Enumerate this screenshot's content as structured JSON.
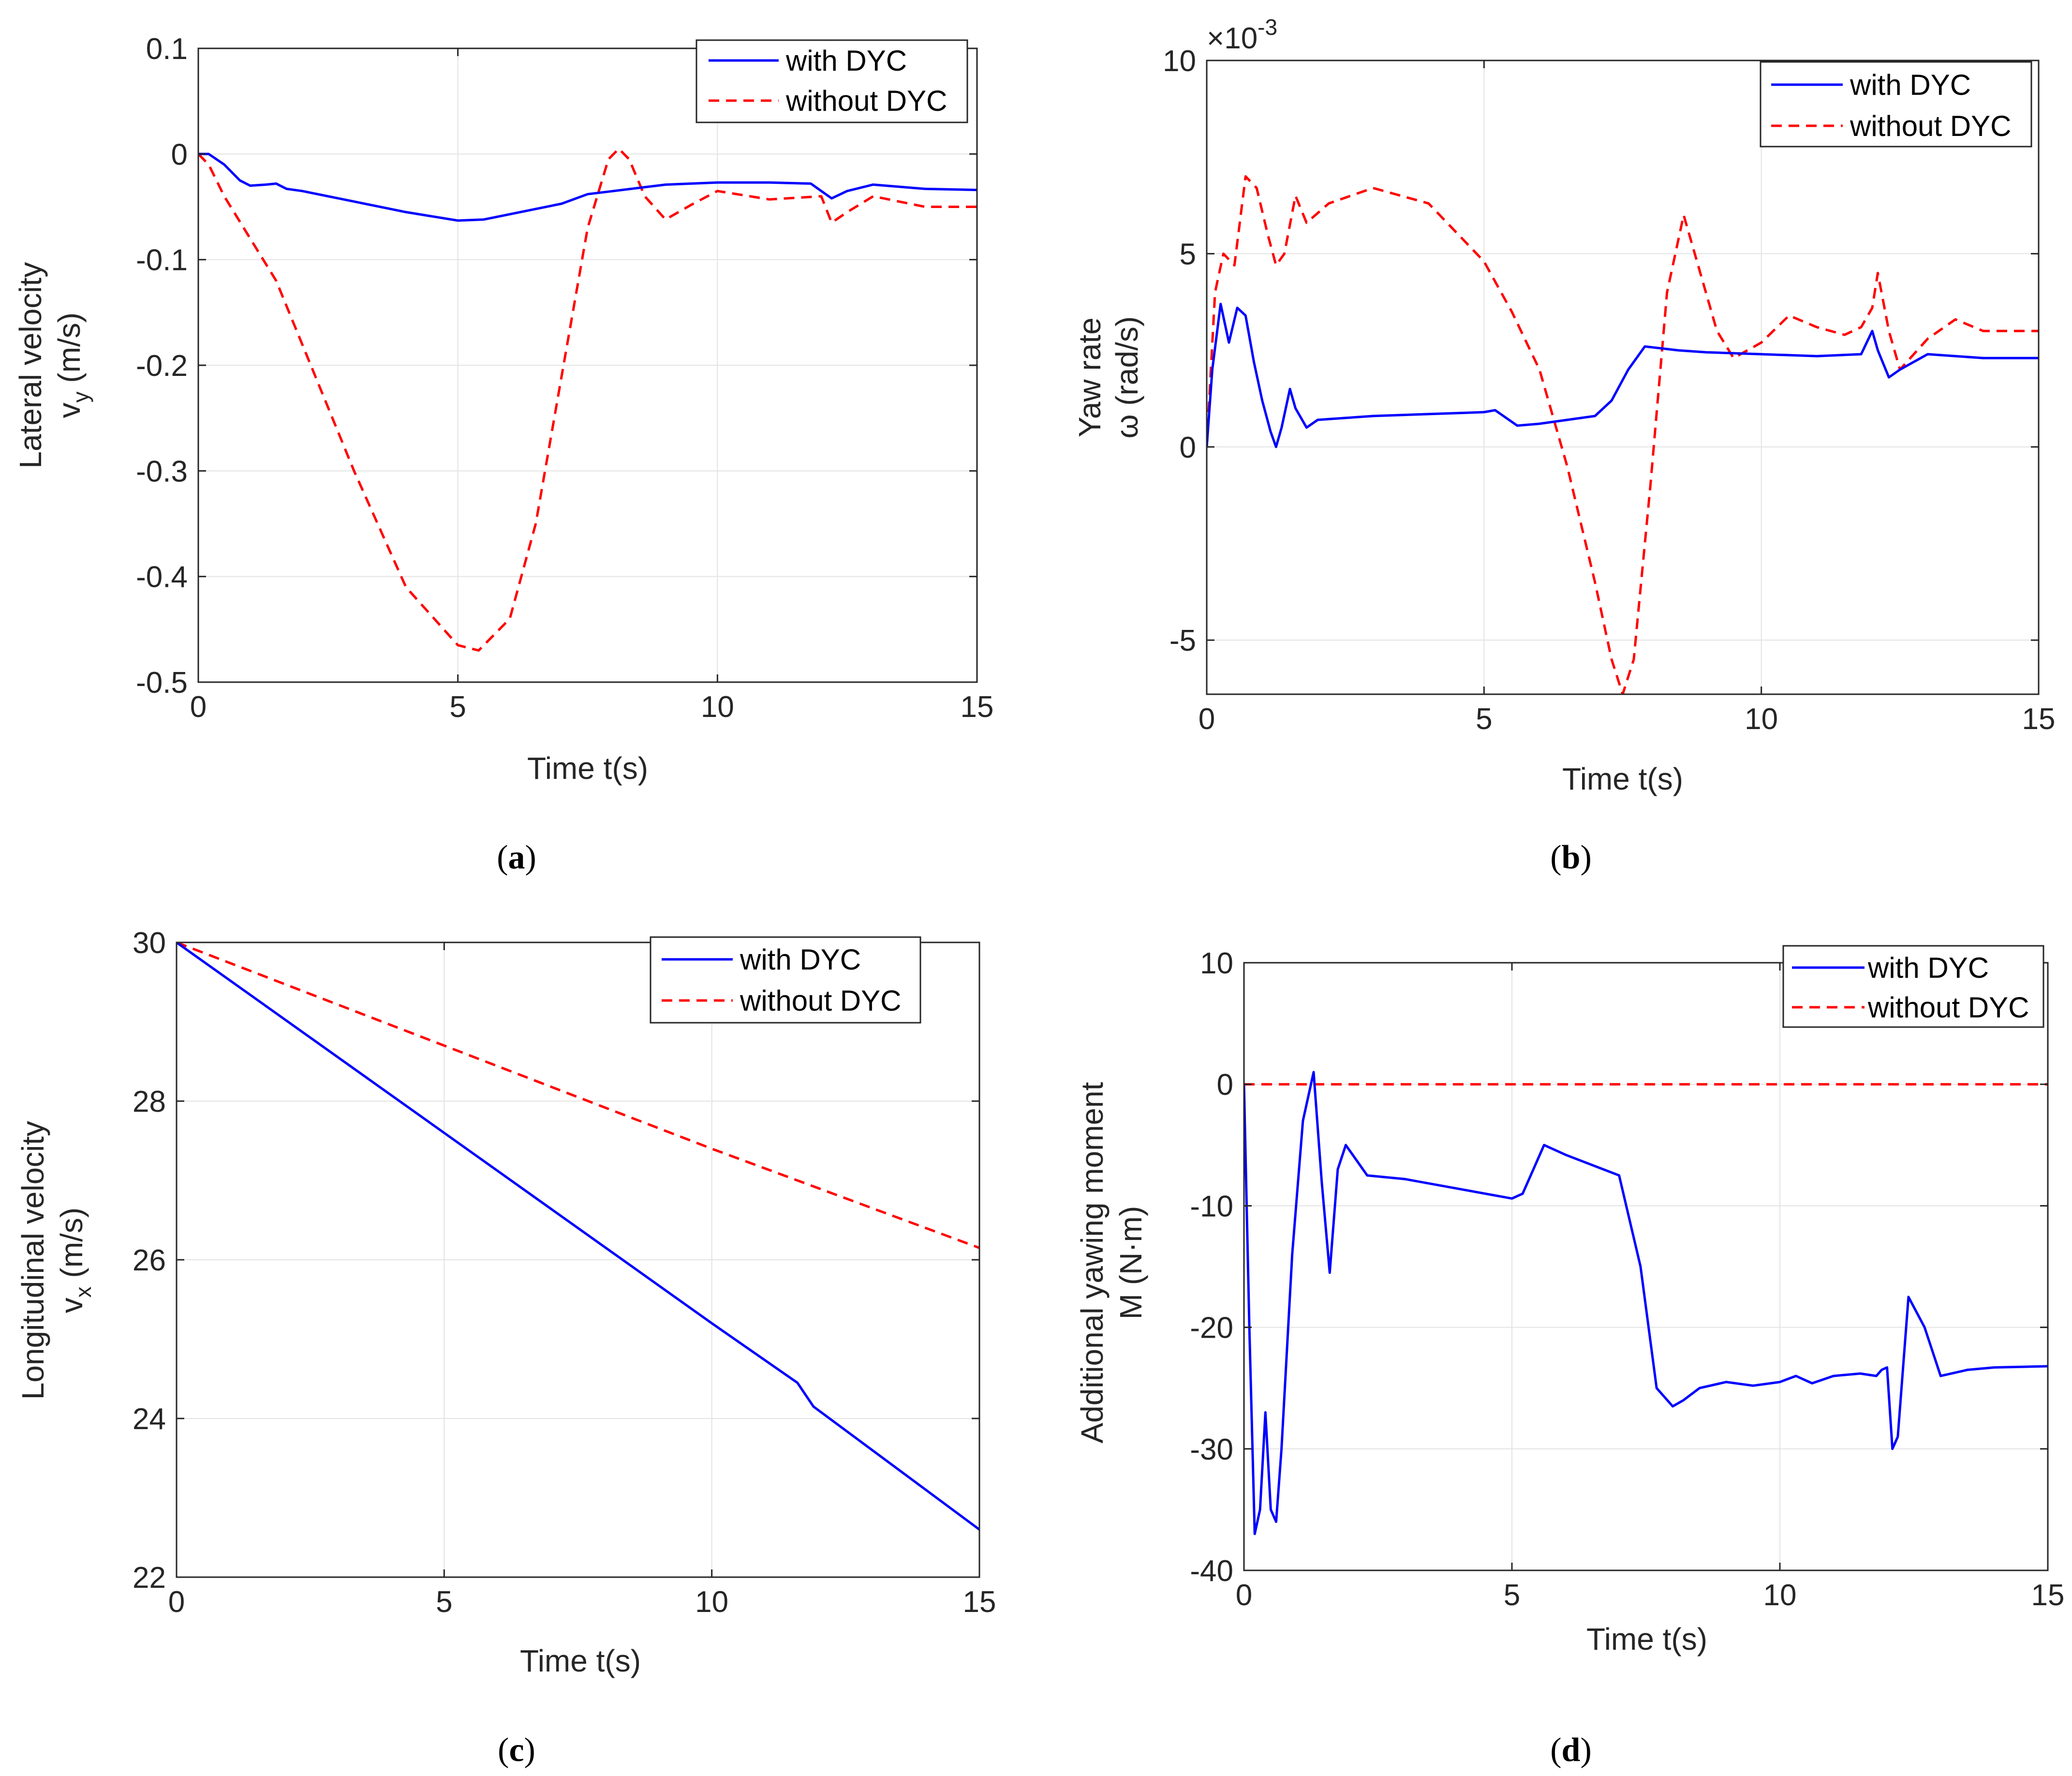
{
  "colors": {
    "with": "#0000ff",
    "without": "#ff0000",
    "grid": "#e3e3e3",
    "axis": "#262626"
  },
  "chart_data": [
    {
      "type": "line",
      "caption": "a",
      "title": "",
      "xlabel": "Time t(s)",
      "ylabel_line1": "Lateral velocity",
      "ylabel_line2": "v",
      "ylabel_sub": "y",
      "ylabel_unit": " (m/s)",
      "xlim": [
        0,
        15
      ],
      "ylim": [
        -0.5,
        0.1
      ],
      "xticks": [
        0,
        5,
        10,
        15
      ],
      "xtick_labels": [
        "0",
        "5",
        "10",
        "15"
      ],
      "yticks": [
        -0.5,
        -0.4,
        -0.3,
        -0.2,
        -0.1,
        0,
        0.1
      ],
      "ytick_labels": [
        "-0.5",
        "-0.4",
        "-0.3",
        "-0.2",
        "-0.1",
        "0",
        "0.1"
      ],
      "grid": true,
      "legend": "top-right",
      "series": [
        {
          "name": "with DYC",
          "style": "solid",
          "x": [
            0,
            0.2,
            0.5,
            0.8,
            1.0,
            1.3,
            1.5,
            1.7,
            2.0,
            3.0,
            4.0,
            5.0,
            5.5,
            6.0,
            7.0,
            7.5,
            8.0,
            9.0,
            10.0,
            11.0,
            11.8,
            12.0,
            12.2,
            12.5,
            13.0,
            14.0,
            15.0
          ],
          "y": [
            0,
            0,
            -0.01,
            -0.025,
            -0.03,
            -0.029,
            -0.028,
            -0.033,
            -0.035,
            -0.045,
            -0.055,
            -0.063,
            -0.062,
            -0.057,
            -0.047,
            -0.038,
            -0.035,
            -0.029,
            -0.027,
            -0.027,
            -0.028,
            -0.035,
            -0.042,
            -0.035,
            -0.029,
            -0.033,
            -0.034
          ]
        },
        {
          "name": "without DYC",
          "style": "dashed",
          "x": [
            0,
            0.2,
            0.5,
            1.0,
            1.5,
            2.0,
            3.0,
            4.0,
            5.0,
            5.4,
            6.0,
            6.5,
            7.0,
            7.5,
            7.9,
            8.1,
            8.3,
            8.6,
            9.0,
            9.5,
            10.0,
            11.0,
            12.0,
            12.2,
            12.5,
            13.0,
            14.0,
            15.0
          ],
          "y": [
            0,
            -0.01,
            -0.04,
            -0.08,
            -0.12,
            -0.18,
            -0.3,
            -0.41,
            -0.465,
            -0.47,
            -0.44,
            -0.35,
            -0.21,
            -0.07,
            -0.005,
            0.005,
            -0.005,
            -0.04,
            -0.062,
            -0.048,
            -0.035,
            -0.043,
            -0.04,
            -0.065,
            -0.055,
            -0.04,
            -0.05,
            -0.05
          ]
        }
      ]
    },
    {
      "type": "line",
      "caption": "b",
      "title": "",
      "xlabel": "Time t(s)",
      "ylabel_line1": "Yaw rate",
      "ylabel_line2": "ω (rad/s)",
      "exponent_base": "×10",
      "exponent_power": "-3",
      "xlim": [
        0,
        15
      ],
      "ylim": [
        -6.4,
        10
      ],
      "xticks": [
        0,
        5,
        10,
        15
      ],
      "xtick_labels": [
        "0",
        "5",
        "10",
        "15"
      ],
      "yticks": [
        -5,
        0,
        5,
        10
      ],
      "ytick_labels": [
        "-5",
        "0",
        "5",
        "10"
      ],
      "grid": true,
      "legend": "top-right",
      "series": [
        {
          "name": "with DYC",
          "style": "solid",
          "x": [
            0,
            0.1,
            0.25,
            0.4,
            0.55,
            0.7,
            0.85,
            1.0,
            1.15,
            1.25,
            1.35,
            1.5,
            1.6,
            1.8,
            2.0,
            2.5,
            3.0,
            4.0,
            5.0,
            5.2,
            5.6,
            6.0,
            7.0,
            7.3,
            7.6,
            7.9,
            8.2,
            8.5,
            9.0,
            10.0,
            11.0,
            11.8,
            12.0,
            12.1,
            12.3,
            12.5,
            13.0,
            13.5,
            14.0,
            15.0
          ],
          "y": [
            0,
            2.0,
            3.7,
            2.7,
            3.6,
            3.4,
            2.2,
            1.2,
            0.4,
            0,
            0.5,
            1.5,
            1.0,
            0.5,
            0.7,
            0.75,
            0.8,
            0.85,
            0.9,
            0.95,
            0.55,
            0.6,
            0.8,
            1.2,
            2.0,
            2.6,
            2.55,
            2.5,
            2.45,
            2.4,
            2.35,
            2.4,
            3.0,
            2.5,
            1.8,
            2.0,
            2.4,
            2.35,
            2.3,
            2.3
          ]
        },
        {
          "name": "without DYC",
          "style": "dashed",
          "x": [
            0,
            0.15,
            0.3,
            0.5,
            0.7,
            0.9,
            1.1,
            1.25,
            1.4,
            1.6,
            1.8,
            2.2,
            3.0,
            4.0,
            5.0,
            5.5,
            6.0,
            6.5,
            7.0,
            7.3,
            7.5,
            7.7,
            8.0,
            8.3,
            8.6,
            8.9,
            9.2,
            9.5,
            10.0,
            10.5,
            11.0,
            11.5,
            11.8,
            12.0,
            12.1,
            12.3,
            12.5,
            13.0,
            13.5,
            14.0,
            15.0
          ],
          "y": [
            0,
            4.0,
            5.0,
            4.7,
            7.0,
            6.7,
            5.5,
            4.7,
            5.0,
            6.5,
            5.8,
            6.3,
            6.7,
            6.3,
            4.8,
            3.5,
            2.0,
            -0.5,
            -3.5,
            -5.5,
            -6.4,
            -5.5,
            -1.0,
            4.0,
            6.0,
            4.5,
            3.0,
            2.3,
            2.7,
            3.4,
            3.1,
            2.9,
            3.1,
            3.6,
            4.5,
            3.0,
            2.0,
            2.8,
            3.3,
            3.0,
            3.0
          ]
        }
      ]
    },
    {
      "type": "line",
      "caption": "c",
      "title": "",
      "xlabel": "Time t(s)",
      "ylabel_line1": "Longitudinal velocity",
      "ylabel_line2": "v",
      "ylabel_sub": "x",
      "ylabel_unit": " (m/s)",
      "xlim": [
        0,
        15
      ],
      "ylim": [
        22,
        30
      ],
      "xticks": [
        0,
        5,
        10,
        15
      ],
      "xtick_labels": [
        "0",
        "5",
        "10",
        "15"
      ],
      "yticks": [
        22,
        24,
        26,
        28,
        30
      ],
      "ytick_labels": [
        "22",
        "24",
        "26",
        "28",
        "30"
      ],
      "grid": true,
      "legend": "top-right",
      "series": [
        {
          "name": "with DYC",
          "style": "solid",
          "x": [
            0,
            5,
            10,
            11.6,
            11.9,
            12.0,
            15.0
          ],
          "y": [
            30,
            27.6,
            25.2,
            24.45,
            24.15,
            24.1,
            22.6
          ]
        },
        {
          "name": "without DYC",
          "style": "dashed",
          "x": [
            0,
            5,
            10,
            15
          ],
          "y": [
            30,
            28.7,
            27.4,
            26.15
          ]
        }
      ]
    },
    {
      "type": "line",
      "caption": "d",
      "title": "",
      "xlabel": "Time t(s)",
      "ylabel_line1": "Additional yawing moment",
      "ylabel_line2": "M (N·m)",
      "xlim": [
        0,
        15
      ],
      "ylim": [
        -40,
        10
      ],
      "xticks": [
        0,
        5,
        10,
        15
      ],
      "xtick_labels": [
        "0",
        "5",
        "10",
        "15"
      ],
      "yticks": [
        -40,
        -30,
        -20,
        -10,
        0,
        10
      ],
      "ytick_labels": [
        "-40",
        "-30",
        "-20",
        "-10",
        "0",
        "10"
      ],
      "grid": true,
      "legend": "top-right",
      "series": [
        {
          "name": "with DYC",
          "style": "solid",
          "x": [
            0,
            0.1,
            0.2,
            0.3,
            0.4,
            0.5,
            0.6,
            0.7,
            0.9,
            1.1,
            1.3,
            1.45,
            1.6,
            1.75,
            1.9,
            2.3,
            3.0,
            4.0,
            5.0,
            5.2,
            5.6,
            6.0,
            7.0,
            7.4,
            7.7,
            8.0,
            8.2,
            8.5,
            9.0,
            9.5,
            10.0,
            10.3,
            10.6,
            11.0,
            11.5,
            11.8,
            11.9,
            12.0,
            12.1,
            12.2,
            12.4,
            12.7,
            13.0,
            13.5,
            14.0,
            15.0
          ],
          "y": [
            0,
            -20,
            -37,
            -35,
            -27,
            -35,
            -36,
            -30,
            -14,
            -3,
            1,
            -8,
            -15.5,
            -7,
            -5,
            -7.5,
            -7.8,
            -8.6,
            -9.4,
            -9.0,
            -5.0,
            -5.8,
            -7.5,
            -15,
            -25,
            -26.5,
            -26,
            -25.0,
            -24.5,
            -24.8,
            -24.5,
            -24.0,
            -24.6,
            -24.0,
            -23.8,
            -24.0,
            -23.5,
            -23.3,
            -30,
            -29,
            -17.5,
            -20,
            -24,
            -23.5,
            -23.3,
            -23.2
          ]
        },
        {
          "name": "without DYC",
          "style": "dashed",
          "x": [
            0,
            15
          ],
          "y": [
            0,
            0
          ]
        }
      ]
    }
  ]
}
